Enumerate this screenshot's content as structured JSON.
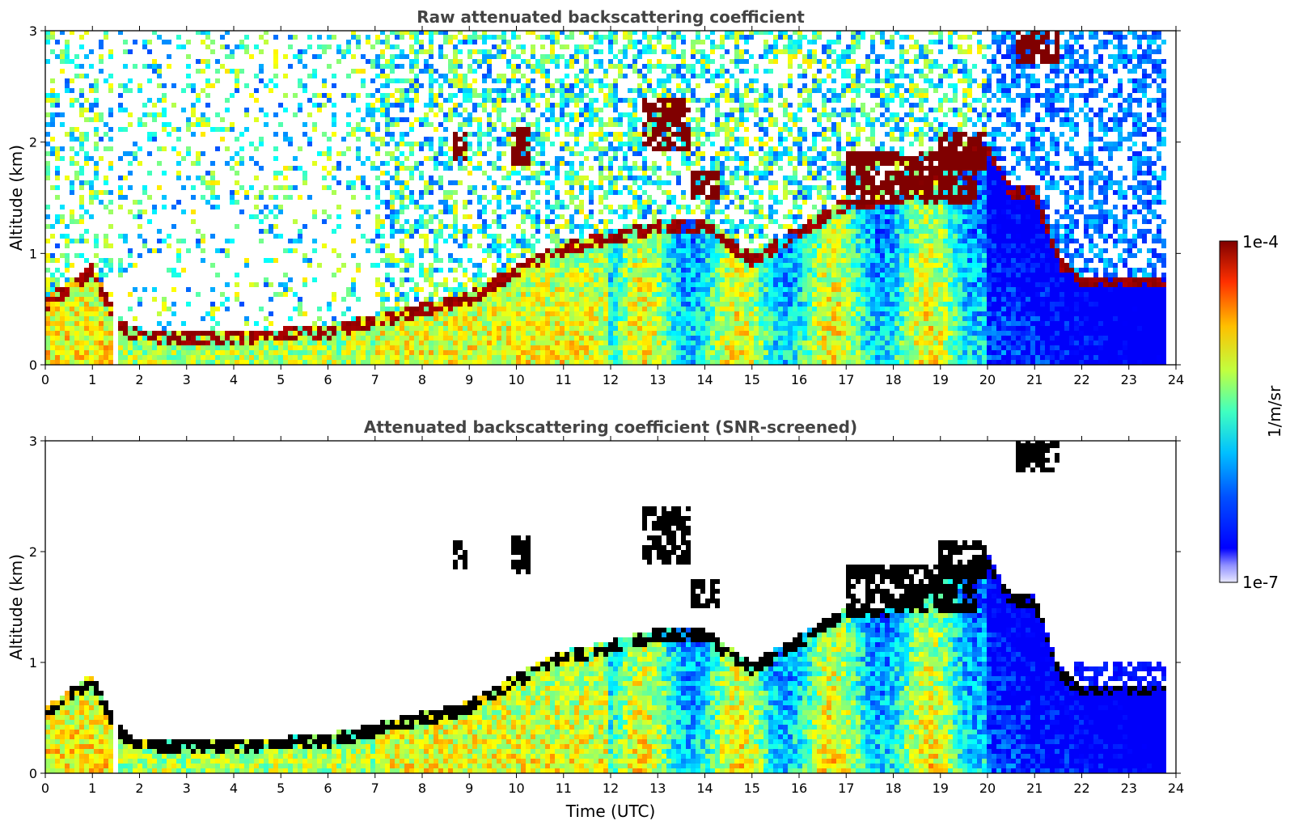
{
  "chart_data": [
    {
      "type": "heatmap",
      "title": "Raw attenuated backscattering coefficient",
      "xlabel": "",
      "ylabel": "Altitude (km)",
      "xlim": [
        0,
        24
      ],
      "ylim": [
        0,
        3
      ],
      "xticks": [
        "0",
        "1",
        "2",
        "3",
        "4",
        "5",
        "6",
        "7",
        "8",
        "9",
        "10",
        "11",
        "12",
        "13",
        "14",
        "15",
        "16",
        "17",
        "18",
        "19",
        "20",
        "21",
        "22",
        "23",
        "24"
      ],
      "yticks": [
        "0",
        "1",
        "2",
        "3"
      ],
      "data_end_hour": 23.8,
      "gap_hours": [
        1.4,
        1.55
      ],
      "layer_top_km": [
        [
          0,
          0.6
        ],
        [
          1,
          0.9
        ],
        [
          1.5,
          0.45
        ],
        [
          2,
          0.3
        ],
        [
          4,
          0.3
        ],
        [
          6,
          0.35
        ],
        [
          7,
          0.45
        ],
        [
          8,
          0.55
        ],
        [
          9,
          0.65
        ],
        [
          10,
          0.9
        ],
        [
          11,
          1.1
        ],
        [
          12,
          1.2
        ],
        [
          13,
          1.3
        ],
        [
          14,
          1.3
        ],
        [
          15,
          1.0
        ],
        [
          16,
          1.25
        ],
        [
          17,
          1.5
        ],
        [
          18,
          1.5
        ],
        [
          19,
          1.8
        ],
        [
          20,
          2.0
        ],
        [
          20.5,
          1.6
        ],
        [
          21,
          1.6
        ],
        [
          21.5,
          1.0
        ],
        [
          22,
          0.8
        ],
        [
          23,
          0.8
        ],
        [
          23.8,
          0.8
        ]
      ],
      "cloud_features_km": [
        {
          "t0": 8.7,
          "t1": 8.95,
          "z0": 1.85,
          "z1": 2.1
        },
        {
          "t0": 9.9,
          "t1": 10.3,
          "z0": 1.8,
          "z1": 2.15
        },
        {
          "t0": 12.7,
          "t1": 13.7,
          "z0": 1.9,
          "z1": 2.4
        },
        {
          "t0": 13.7,
          "t1": 14.3,
          "z0": 1.5,
          "z1": 1.75
        },
        {
          "t0": 17.0,
          "t1": 19.8,
          "z0": 1.45,
          "z1": 1.9
        },
        {
          "t0": 19.0,
          "t1": 20.0,
          "z0": 1.75,
          "z1": 2.1
        },
        {
          "t0": 20.6,
          "t1": 21.5,
          "z0": 2.7,
          "z1": 3.0
        }
      ]
    },
    {
      "type": "heatmap",
      "title": "Attenuated backscattering coefficient (SNR-screened)",
      "xlabel": "Time (UTC)",
      "ylabel": "Altitude (km)",
      "xlim": [
        0,
        24
      ],
      "ylim": [
        0,
        3
      ],
      "xticks": [
        "0",
        "1",
        "2",
        "3",
        "4",
        "5",
        "6",
        "7",
        "8",
        "9",
        "10",
        "11",
        "12",
        "13",
        "14",
        "15",
        "16",
        "17",
        "18",
        "19",
        "20",
        "21",
        "22",
        "23",
        "24"
      ],
      "yticks": [
        "0",
        "1",
        "2",
        "3"
      ],
      "data_end_hour": 23.8,
      "gap_hours": [
        1.4,
        1.55
      ]
    }
  ],
  "colorbar": {
    "label": "1/m/sr",
    "max_label": "1e-4",
    "min_label": "1e-7",
    "colormap": "jet",
    "colors": [
      "#00008f",
      "#0000ff",
      "#0060ff",
      "#00c8ff",
      "#40ffbf",
      "#bfff40",
      "#ffd000",
      "#ff6000",
      "#d00000",
      "#800000"
    ]
  }
}
